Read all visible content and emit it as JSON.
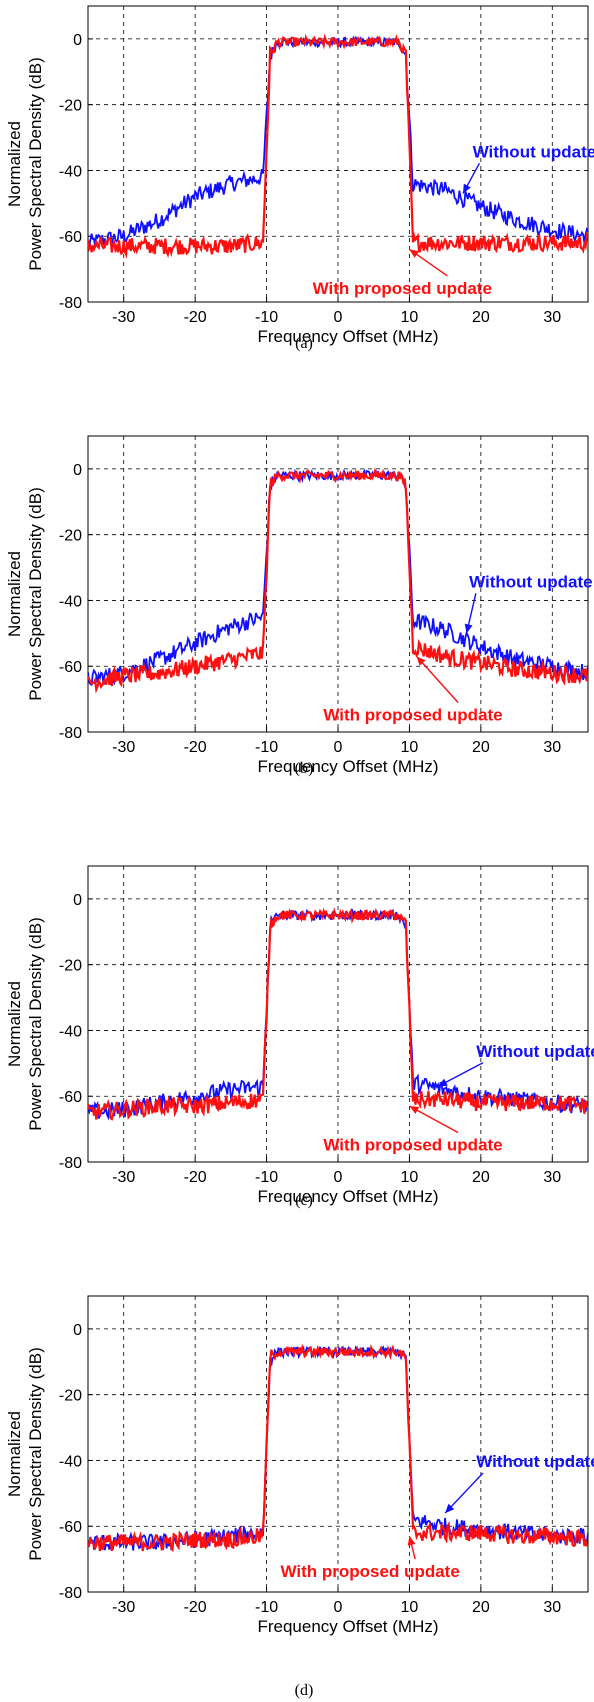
{
  "figure": {
    "x_ticks": [
      -30,
      -20,
      -10,
      0,
      10,
      20,
      30
    ],
    "y_ticks": [
      0,
      -20,
      -40,
      -60,
      -80
    ],
    "xlabel": "Frequency Offset (MHz)",
    "ylabel_line1": "Normalized",
    "ylabel_line2": "Power Spectral Density (dB)",
    "legend_without": "Without update",
    "legend_with": "With proposed update"
  },
  "colors": {
    "without": "#1010ff",
    "with": "#ff1010",
    "grid": "#000000"
  },
  "chart_data": [
    {
      "type": "line",
      "caption": "(a)",
      "xlim": [
        -35,
        35
      ],
      "ylim": [
        -80,
        10
      ],
      "grid": true,
      "series": [
        {
          "name": "Without update",
          "x": [
            -35,
            -30,
            -25,
            -20,
            -15,
            -10.5,
            -9.5,
            -8.5,
            -5,
            0,
            5,
            8.5,
            9.5,
            10.5,
            15,
            20,
            25,
            30,
            35
          ],
          "y": [
            -62,
            -60,
            -55,
            -48,
            -44,
            -42,
            -5,
            -1,
            -1,
            -1,
            -1,
            -1,
            -5,
            -44,
            -46,
            -51,
            -55,
            -58,
            -60
          ]
        },
        {
          "name": "With proposed update",
          "x": [
            -35,
            -30,
            -25,
            -20,
            -15,
            -10.5,
            -9.5,
            -8.5,
            -5,
            0,
            5,
            8.5,
            9.5,
            10.5,
            15,
            20,
            25,
            30,
            35
          ],
          "y": [
            -63,
            -63,
            -63,
            -63,
            -63,
            -62,
            -5,
            -1,
            -1,
            -1,
            -1,
            -1,
            -5,
            -62,
            -62,
            -62,
            -62,
            -62,
            -62
          ]
        }
      ],
      "annotations": [
        {
          "text": "Without update",
          "x": 27.5,
          "y": -36,
          "arrow_to": [
            17.5,
            -47
          ]
        },
        {
          "text": "With proposed update",
          "x": 9,
          "y": -77.5,
          "arrow_to": [
            10,
            -64
          ]
        }
      ]
    },
    {
      "type": "line",
      "caption": "(b)",
      "xlim": [
        -35,
        35
      ],
      "ylim": [
        -80,
        10
      ],
      "grid": true,
      "series": [
        {
          "name": "Without update",
          "x": [
            -35,
            -30,
            -25,
            -20,
            -15,
            -10.5,
            -9.5,
            -8.5,
            -5,
            0,
            5,
            8.5,
            9.5,
            10.5,
            15,
            20,
            25,
            30,
            35
          ],
          "y": [
            -64,
            -62,
            -58,
            -53,
            -48,
            -45,
            -5,
            -2,
            -2,
            -2,
            -2,
            -2,
            -5,
            -46,
            -49,
            -54,
            -58,
            -60,
            -62
          ]
        },
        {
          "name": "With proposed update",
          "x": [
            -35,
            -30,
            -25,
            -20,
            -15,
            -10.5,
            -9.5,
            -8.5,
            -5,
            0,
            5,
            8.5,
            9.5,
            10.5,
            15,
            20,
            25,
            30,
            35
          ],
          "y": [
            -65,
            -63,
            -62,
            -60,
            -58,
            -56,
            -5,
            -2,
            -2,
            -2,
            -2,
            -2,
            -5,
            -54,
            -57,
            -59,
            -61,
            -62,
            -63
          ]
        }
      ],
      "annotations": [
        {
          "text": "Without update",
          "x": 27,
          "y": -36,
          "arrow_to": [
            18,
            -50
          ]
        },
        {
          "text": "With proposed update",
          "x": 10.5,
          "y": -76.5,
          "arrow_to": [
            11,
            -57
          ]
        }
      ]
    },
    {
      "type": "line",
      "caption": "(c)",
      "xlim": [
        -35,
        35
      ],
      "ylim": [
        -80,
        10
      ],
      "grid": true,
      "series": [
        {
          "name": "Without update",
          "x": [
            -35,
            -30,
            -25,
            -20,
            -15,
            -10.5,
            -9.5,
            -8.5,
            -5,
            0,
            5,
            8.5,
            9.5,
            10.5,
            15,
            20,
            25,
            30,
            35
          ],
          "y": [
            -65,
            -64,
            -62,
            -60,
            -58,
            -57,
            -8,
            -5,
            -5,
            -5,
            -5,
            -5,
            -8,
            -56,
            -58,
            -60,
            -61,
            -62,
            -63
          ]
        },
        {
          "name": "With proposed update",
          "x": [
            -35,
            -30,
            -25,
            -20,
            -15,
            -10.5,
            -9.5,
            -8.5,
            -5,
            0,
            5,
            8.5,
            9.5,
            10.5,
            15,
            20,
            25,
            30,
            35
          ],
          "y": [
            -65,
            -64,
            -63,
            -63,
            -62,
            -61,
            -8,
            -5,
            -5,
            -5,
            -5,
            -5,
            -8,
            -61,
            -61,
            -62,
            -62,
            -62,
            -63
          ]
        }
      ],
      "annotations": [
        {
          "text": "Without update",
          "x": 28,
          "y": -48,
          "arrow_to": [
            14,
            -57
          ]
        },
        {
          "text": "With proposed update",
          "x": 10.5,
          "y": -76.5,
          "arrow_to": [
            10,
            -63
          ]
        }
      ]
    },
    {
      "type": "line",
      "caption": "(d)",
      "xlim": [
        -35,
        35
      ],
      "ylim": [
        -80,
        10
      ],
      "grid": true,
      "series": [
        {
          "name": "Without update",
          "x": [
            -35,
            -30,
            -25,
            -20,
            -15,
            -10.5,
            -9.5,
            -8.5,
            -5,
            0,
            5,
            8.5,
            9.5,
            10.5,
            15,
            20,
            25,
            30,
            35
          ],
          "y": [
            -65,
            -65,
            -65,
            -64,
            -63,
            -62,
            -9,
            -7,
            -7,
            -7,
            -7,
            -7,
            -9,
            -58,
            -60,
            -61,
            -62,
            -63,
            -63
          ]
        },
        {
          "name": "With proposed update",
          "x": [
            -35,
            -30,
            -25,
            -20,
            -15,
            -10.5,
            -9.5,
            -8.5,
            -5,
            0,
            5,
            8.5,
            9.5,
            10.5,
            15,
            20,
            25,
            30,
            35
          ],
          "y": [
            -65,
            -65,
            -65,
            -64,
            -64,
            -63,
            -9,
            -7,
            -7,
            -7,
            -7,
            -7,
            -9,
            -62,
            -62,
            -62,
            -63,
            -63,
            -64
          ]
        }
      ],
      "annotations": [
        {
          "text": "Without update",
          "x": 28,
          "y": -42,
          "arrow_to": [
            15,
            -56
          ]
        },
        {
          "text": "With proposed update",
          "x": 4.5,
          "y": -75.5,
          "arrow_to": [
            10,
            -63
          ]
        }
      ]
    }
  ]
}
